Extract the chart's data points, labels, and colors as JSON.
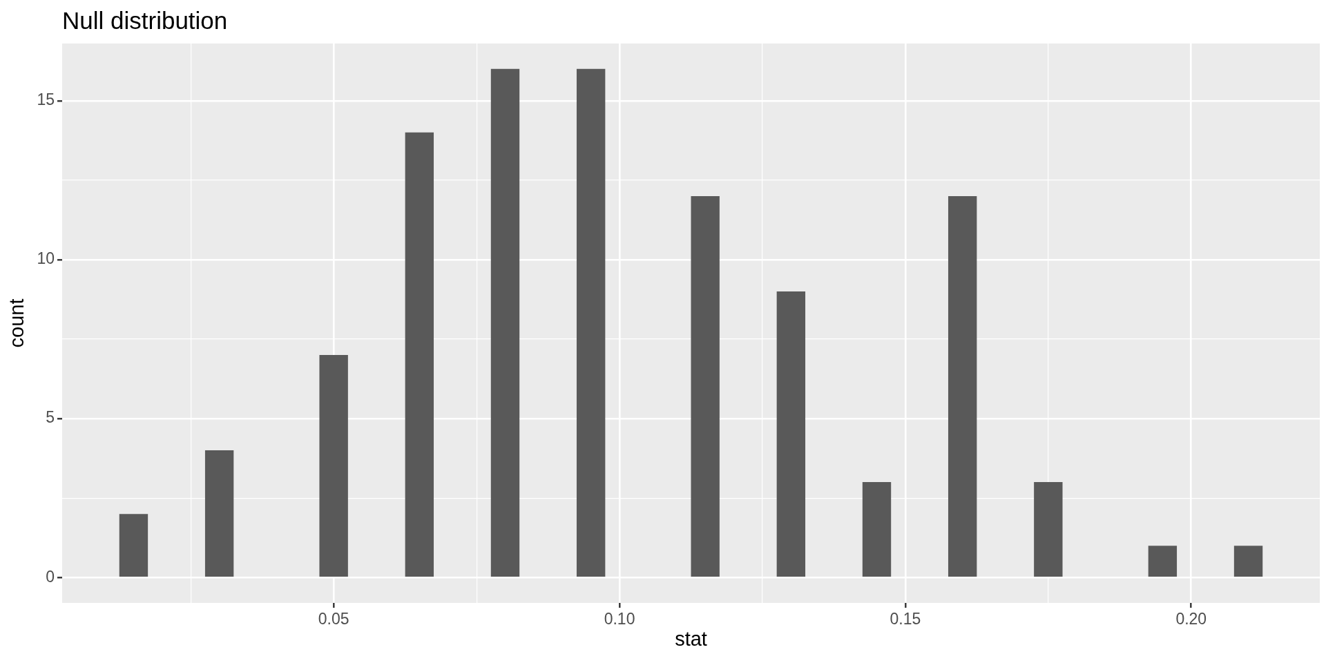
{
  "chart_data": {
    "type": "histogram",
    "title": "Null distribution",
    "xlabel": "stat",
    "ylabel": "count",
    "bins": [
      0.0125,
      0.0175,
      0.0225,
      0.0275,
      0.0325,
      0.0375,
      0.0425,
      0.0475,
      0.0525,
      0.0575,
      0.0625,
      0.0675,
      0.0725,
      0.0775,
      0.0825,
      0.0875,
      0.0925,
      0.0975,
      0.1025,
      0.1075,
      0.1125,
      0.1175,
      0.1225,
      0.1275,
      0.1325,
      0.1375,
      0.1425,
      0.1475,
      0.1525,
      0.1575,
      0.1625,
      0.1675,
      0.1725,
      0.1775,
      0.1825,
      0.1875,
      0.1925,
      0.1975,
      0.2025,
      0.2075,
      0.2125
    ],
    "values": [
      2,
      0,
      0,
      4,
      0,
      0,
      0,
      7,
      0,
      0,
      14,
      0,
      0,
      16,
      0,
      0,
      16,
      0,
      0,
      0,
      12,
      0,
      0,
      9,
      0,
      0,
      3,
      0,
      0,
      12,
      0,
      0,
      3,
      0,
      0,
      0,
      1,
      0,
      0,
      1
    ],
    "color": "#595959",
    "xlim": [
      0.0025,
      0.2225
    ],
    "xticks": [
      {
        "value": 0.025,
        "label": null
      },
      0.05,
      {
        "value": 0.075,
        "label": null
      },
      {
        "value": 0.1,
        "label": "0.10"
      },
      {
        "value": 0.125,
        "label": null
      },
      0.15,
      {
        "value": 0.175,
        "label": null
      },
      {
        "value": 0.2,
        "label": "0.20"
      }
    ],
    "ylim": [
      -0.8,
      16.8
    ],
    "yticks": [
      0,
      {
        "value": 2.5,
        "label": null
      },
      5,
      {
        "value": 7.5,
        "label": null
      },
      10,
      {
        "value": 12.5,
        "label": null
      },
      15
    ],
    "grid": true
  }
}
